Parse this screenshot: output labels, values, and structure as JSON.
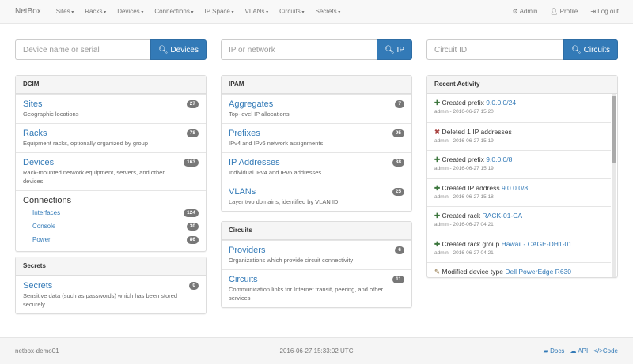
{
  "nav": {
    "brand": "NetBox",
    "menus": [
      "Sites",
      "Racks",
      "Devices",
      "Connections",
      "IP Space",
      "VLANs",
      "Circuits",
      "Secrets"
    ],
    "admin": "Admin",
    "profile": "Profile",
    "logout": "Log out"
  },
  "search": [
    {
      "placeholder": "Device name or serial",
      "button": "Devices"
    },
    {
      "placeholder": "IP or network",
      "button": "IP"
    },
    {
      "placeholder": "Circuit ID",
      "button": "Circuits"
    }
  ],
  "dcim": {
    "title": "DCIM",
    "items": [
      {
        "label": "Sites",
        "desc": "Geographic locations",
        "count": "27"
      },
      {
        "label": "Racks",
        "desc": "Equipment racks, optionally organized by group",
        "count": "78"
      },
      {
        "label": "Devices",
        "desc": "Rack-mounted network equipment, servers, and other devices",
        "count": "163"
      }
    ],
    "connections": {
      "label": "Connections",
      "items": [
        {
          "label": "Interfaces",
          "count": "124"
        },
        {
          "label": "Console",
          "count": "30"
        },
        {
          "label": "Power",
          "count": "86"
        }
      ]
    }
  },
  "secrets": {
    "title": "Secrets",
    "items": [
      {
        "label": "Secrets",
        "desc": "Sensitive data (such as passwords) which has been stored securely",
        "count": "0"
      }
    ]
  },
  "ipam": {
    "title": "IPAM",
    "items": [
      {
        "label": "Aggregates",
        "desc": "Top-level IP allocations",
        "count": "7"
      },
      {
        "label": "Prefixes",
        "desc": "IPv4 and IPv6 network assignments",
        "count": "95"
      },
      {
        "label": "IP Addresses",
        "desc": "Individual IPv4 and IPv6 addresses",
        "count": "88"
      },
      {
        "label": "VLANs",
        "desc": "Layer two domains, identified by VLAN ID",
        "count": "25"
      }
    ]
  },
  "circuits": {
    "title": "Circuits",
    "items": [
      {
        "label": "Providers",
        "desc": "Organizations which provide circuit connectivity",
        "count": "6"
      },
      {
        "label": "Circuits",
        "desc": "Communication links for Internet transit, peering, and other services",
        "count": "11"
      }
    ]
  },
  "activity": {
    "title": "Recent Activity",
    "items": [
      {
        "icon": "plus",
        "action": "Created prefix",
        "link": "9.0.0.0/24",
        "meta": "admin - 2016-06-27 15:20"
      },
      {
        "icon": "times",
        "action": "Deleted 1 IP addresses",
        "link": "",
        "meta": "admin - 2016-06-27 15:19"
      },
      {
        "icon": "plus",
        "action": "Created prefix",
        "link": "9.0.0.0/8",
        "meta": "admin - 2016-06-27 15:19"
      },
      {
        "icon": "plus",
        "action": "Created IP address",
        "link": "9.0.0.0/8",
        "meta": "admin - 2016-06-27 15:18"
      },
      {
        "icon": "plus",
        "action": "Created rack",
        "link": "RACK-01-CA",
        "meta": "admin - 2016-06-27 04:21"
      },
      {
        "icon": "plus",
        "action": "Created rack group",
        "link": "Hawaii - CAGE-DH1-01",
        "meta": "admin - 2016-06-27 04:21"
      },
      {
        "icon": "pencil",
        "action": "Modified device type",
        "link": "Dell PowerEdge R630",
        "meta": ""
      }
    ]
  },
  "footer": {
    "host": "netbox-demo01",
    "time": "2016-06-27 15:33:02 UTC",
    "docs": "Docs",
    "api": "API",
    "code": "Code"
  },
  "colors": {
    "primary": "#337ab7",
    "badge": "#777777",
    "created": "#3c763d",
    "deleted": "#a94442"
  }
}
